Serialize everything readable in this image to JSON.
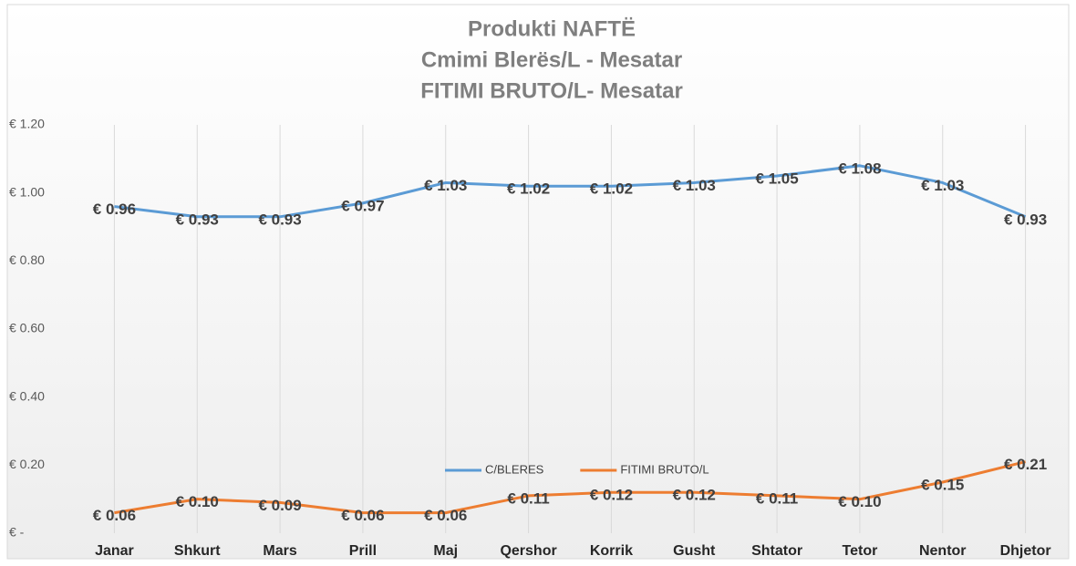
{
  "chart_data": {
    "type": "line",
    "title": [
      "Produkti NAFTË",
      "Cmimi Blerës/L  - Mesatar",
      "FITIMI BRUTO/L-  Mesatar"
    ],
    "categories": [
      "Janar",
      "Shkurt",
      "Mars",
      "Prill",
      "Maj",
      "Qershor",
      "Korrik",
      "Gusht",
      "Shtator",
      "Tetor",
      "Nentor",
      "Dhjetor"
    ],
    "series": [
      {
        "name": "C/BLERES",
        "color": "#5b9bd5",
        "values": [
          0.96,
          0.93,
          0.93,
          0.97,
          1.03,
          1.02,
          1.02,
          1.03,
          1.05,
          1.08,
          1.03,
          0.93
        ],
        "value_labels": [
          "€ 0.96",
          "€ 0.93",
          "€ 0.93",
          "€ 0.97",
          "€ 1.03",
          "€ 1.02",
          "€ 1.02",
          "€ 1.03",
          "€ 1.05",
          "€ 1.08",
          "€ 1.03",
          "€ 0.93"
        ]
      },
      {
        "name": "FITIMI BRUTO/L",
        "color": "#ed7d31",
        "values": [
          0.06,
          0.1,
          0.09,
          0.06,
          0.06,
          0.11,
          0.12,
          0.12,
          0.11,
          0.1,
          0.15,
          0.21
        ],
        "value_labels": [
          "€ 0.06",
          "€ 0.10",
          "€ 0.09",
          "€ 0.06",
          "€ 0.06",
          "€ 0.11",
          "€ 0.12",
          "€ 0.12",
          "€ 0.11",
          "€ 0.10",
          "€ 0.15",
          "€ 0.21"
        ]
      }
    ],
    "ylim": [
      0,
      1.2
    ],
    "yticks": [
      {
        "value": 0,
        "label": "€ -"
      },
      {
        "value": 0.2,
        "label": "€ 0.20"
      },
      {
        "value": 0.4,
        "label": "€ 0.40"
      },
      {
        "value": 0.6,
        "label": "€ 0.60"
      },
      {
        "value": 0.8,
        "label": "€ 0.80"
      },
      {
        "value": 1.0,
        "label": "€ 1.00"
      },
      {
        "value": 1.2,
        "label": "€ 1.20"
      }
    ],
    "legend": "bottom"
  }
}
